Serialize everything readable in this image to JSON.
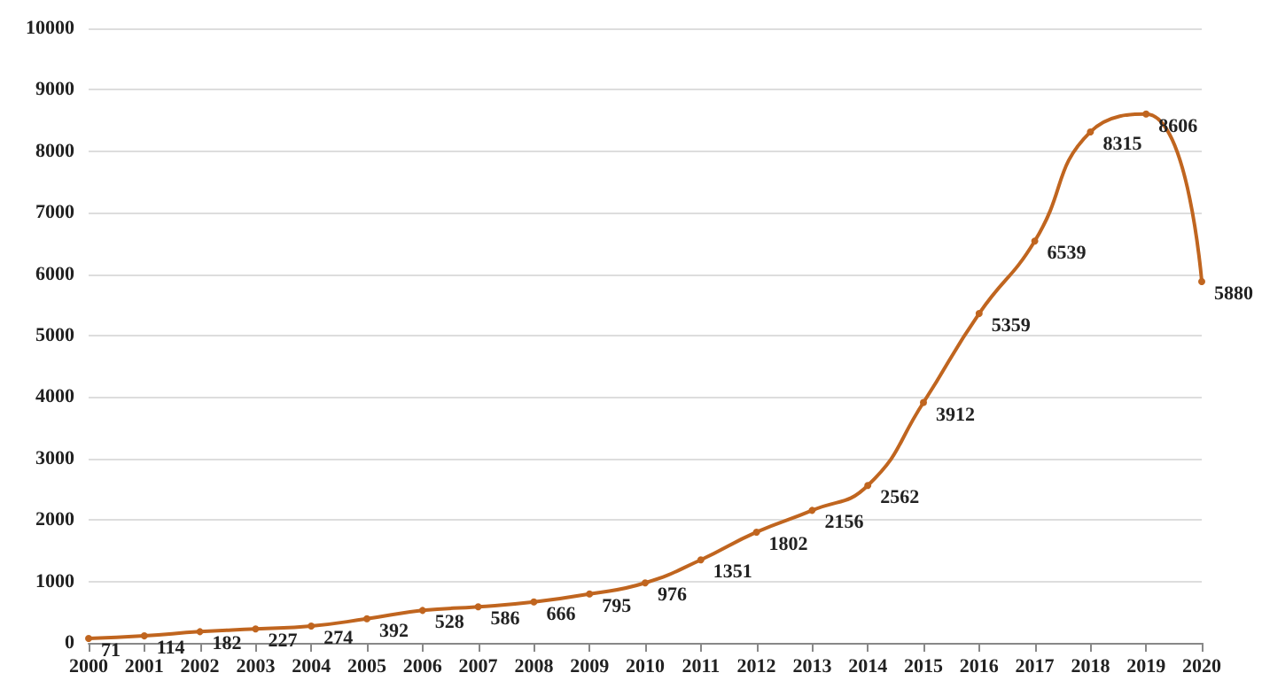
{
  "chart_data": {
    "type": "line",
    "categories": [
      "2000",
      "2001",
      "2002",
      "2003",
      "2004",
      "2005",
      "2006",
      "2007",
      "2008",
      "2009",
      "2010",
      "2011",
      "2012",
      "2013",
      "2014",
      "2015",
      "2016",
      "2017",
      "2018",
      "2019",
      "2020"
    ],
    "series": [
      {
        "color": "#c0651f",
        "values": [
          71,
          114,
          182,
          227,
          274,
          392,
          528,
          586,
          666,
          795,
          976,
          1351,
          1802,
          2156,
          2562,
          3912,
          5359,
          6539,
          8315,
          8606,
          5880
        ]
      }
    ],
    "ylim": [
      0,
      10000
    ],
    "yticks": [
      0,
      1000,
      2000,
      3000,
      4000,
      5000,
      6000,
      7000,
      8000,
      9000,
      10000
    ],
    "grid": "y",
    "marker": "circle",
    "line_style": "solid",
    "data_labels": true
  }
}
